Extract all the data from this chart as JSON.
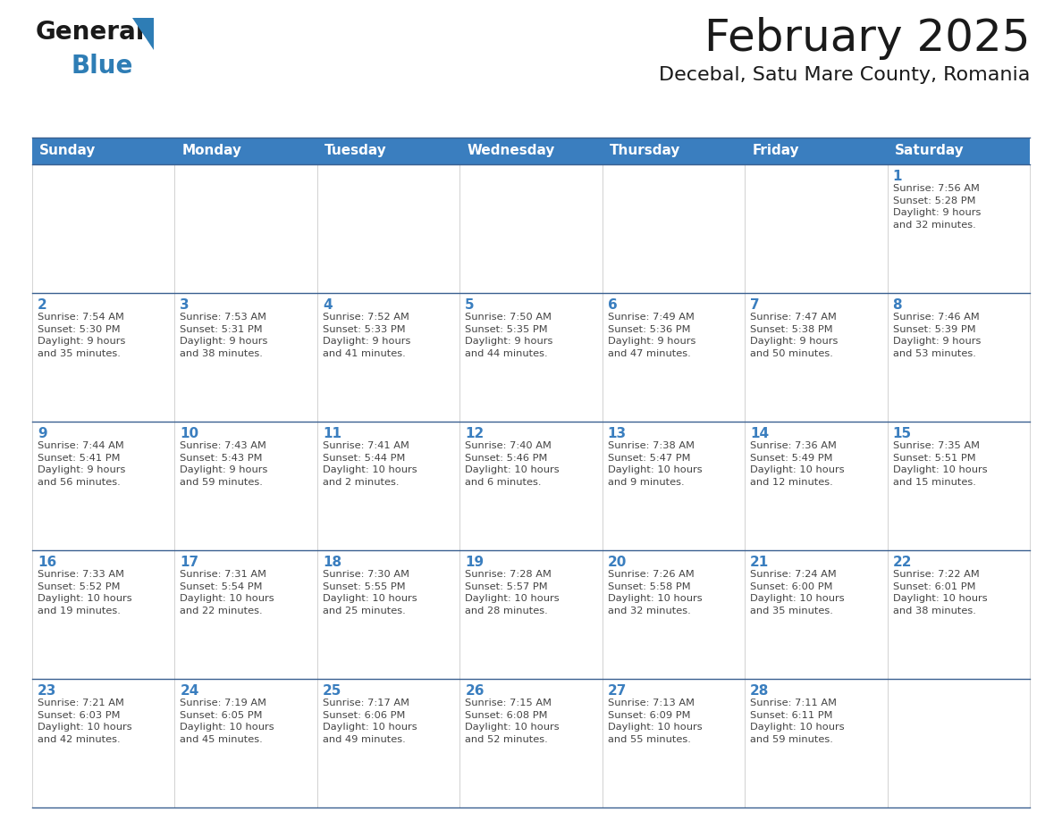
{
  "title": "February 2025",
  "subtitle": "Decebal, Satu Mare County, Romania",
  "days_of_week": [
    "Sunday",
    "Monday",
    "Tuesday",
    "Wednesday",
    "Thursday",
    "Friday",
    "Saturday"
  ],
  "header_bg": "#3a7ebf",
  "header_text": "#FFFFFF",
  "cell_bg": "#FFFFFF",
  "cell_alt_bg": "#f5f5f5",
  "row_line_color": "#3a6090",
  "cell_border_color": "#cccccc",
  "day_number_color": "#3a7ebf",
  "day_text_color": "#444444",
  "title_color": "#1a1a1a",
  "subtitle_color": "#1a1a1a",
  "logo_general_color": "#1a1a1a",
  "logo_blue_color": "#2E7DB5",
  "background_color": "#FFFFFF",
  "fig_width": 11.88,
  "fig_height": 9.18,
  "calendar_data": [
    [
      {
        "day": null,
        "info": ""
      },
      {
        "day": null,
        "info": ""
      },
      {
        "day": null,
        "info": ""
      },
      {
        "day": null,
        "info": ""
      },
      {
        "day": null,
        "info": ""
      },
      {
        "day": null,
        "info": ""
      },
      {
        "day": 1,
        "info": "Sunrise: 7:56 AM\nSunset: 5:28 PM\nDaylight: 9 hours\nand 32 minutes."
      }
    ],
    [
      {
        "day": 2,
        "info": "Sunrise: 7:54 AM\nSunset: 5:30 PM\nDaylight: 9 hours\nand 35 minutes."
      },
      {
        "day": 3,
        "info": "Sunrise: 7:53 AM\nSunset: 5:31 PM\nDaylight: 9 hours\nand 38 minutes."
      },
      {
        "day": 4,
        "info": "Sunrise: 7:52 AM\nSunset: 5:33 PM\nDaylight: 9 hours\nand 41 minutes."
      },
      {
        "day": 5,
        "info": "Sunrise: 7:50 AM\nSunset: 5:35 PM\nDaylight: 9 hours\nand 44 minutes."
      },
      {
        "day": 6,
        "info": "Sunrise: 7:49 AM\nSunset: 5:36 PM\nDaylight: 9 hours\nand 47 minutes."
      },
      {
        "day": 7,
        "info": "Sunrise: 7:47 AM\nSunset: 5:38 PM\nDaylight: 9 hours\nand 50 minutes."
      },
      {
        "day": 8,
        "info": "Sunrise: 7:46 AM\nSunset: 5:39 PM\nDaylight: 9 hours\nand 53 minutes."
      }
    ],
    [
      {
        "day": 9,
        "info": "Sunrise: 7:44 AM\nSunset: 5:41 PM\nDaylight: 9 hours\nand 56 minutes."
      },
      {
        "day": 10,
        "info": "Sunrise: 7:43 AM\nSunset: 5:43 PM\nDaylight: 9 hours\nand 59 minutes."
      },
      {
        "day": 11,
        "info": "Sunrise: 7:41 AM\nSunset: 5:44 PM\nDaylight: 10 hours\nand 2 minutes."
      },
      {
        "day": 12,
        "info": "Sunrise: 7:40 AM\nSunset: 5:46 PM\nDaylight: 10 hours\nand 6 minutes."
      },
      {
        "day": 13,
        "info": "Sunrise: 7:38 AM\nSunset: 5:47 PM\nDaylight: 10 hours\nand 9 minutes."
      },
      {
        "day": 14,
        "info": "Sunrise: 7:36 AM\nSunset: 5:49 PM\nDaylight: 10 hours\nand 12 minutes."
      },
      {
        "day": 15,
        "info": "Sunrise: 7:35 AM\nSunset: 5:51 PM\nDaylight: 10 hours\nand 15 minutes."
      }
    ],
    [
      {
        "day": 16,
        "info": "Sunrise: 7:33 AM\nSunset: 5:52 PM\nDaylight: 10 hours\nand 19 minutes."
      },
      {
        "day": 17,
        "info": "Sunrise: 7:31 AM\nSunset: 5:54 PM\nDaylight: 10 hours\nand 22 minutes."
      },
      {
        "day": 18,
        "info": "Sunrise: 7:30 AM\nSunset: 5:55 PM\nDaylight: 10 hours\nand 25 minutes."
      },
      {
        "day": 19,
        "info": "Sunrise: 7:28 AM\nSunset: 5:57 PM\nDaylight: 10 hours\nand 28 minutes."
      },
      {
        "day": 20,
        "info": "Sunrise: 7:26 AM\nSunset: 5:58 PM\nDaylight: 10 hours\nand 32 minutes."
      },
      {
        "day": 21,
        "info": "Sunrise: 7:24 AM\nSunset: 6:00 PM\nDaylight: 10 hours\nand 35 minutes."
      },
      {
        "day": 22,
        "info": "Sunrise: 7:22 AM\nSunset: 6:01 PM\nDaylight: 10 hours\nand 38 minutes."
      }
    ],
    [
      {
        "day": 23,
        "info": "Sunrise: 7:21 AM\nSunset: 6:03 PM\nDaylight: 10 hours\nand 42 minutes."
      },
      {
        "day": 24,
        "info": "Sunrise: 7:19 AM\nSunset: 6:05 PM\nDaylight: 10 hours\nand 45 minutes."
      },
      {
        "day": 25,
        "info": "Sunrise: 7:17 AM\nSunset: 6:06 PM\nDaylight: 10 hours\nand 49 minutes."
      },
      {
        "day": 26,
        "info": "Sunrise: 7:15 AM\nSunset: 6:08 PM\nDaylight: 10 hours\nand 52 minutes."
      },
      {
        "day": 27,
        "info": "Sunrise: 7:13 AM\nSunset: 6:09 PM\nDaylight: 10 hours\nand 55 minutes."
      },
      {
        "day": 28,
        "info": "Sunrise: 7:11 AM\nSunset: 6:11 PM\nDaylight: 10 hours\nand 59 minutes."
      },
      {
        "day": null,
        "info": ""
      }
    ]
  ]
}
